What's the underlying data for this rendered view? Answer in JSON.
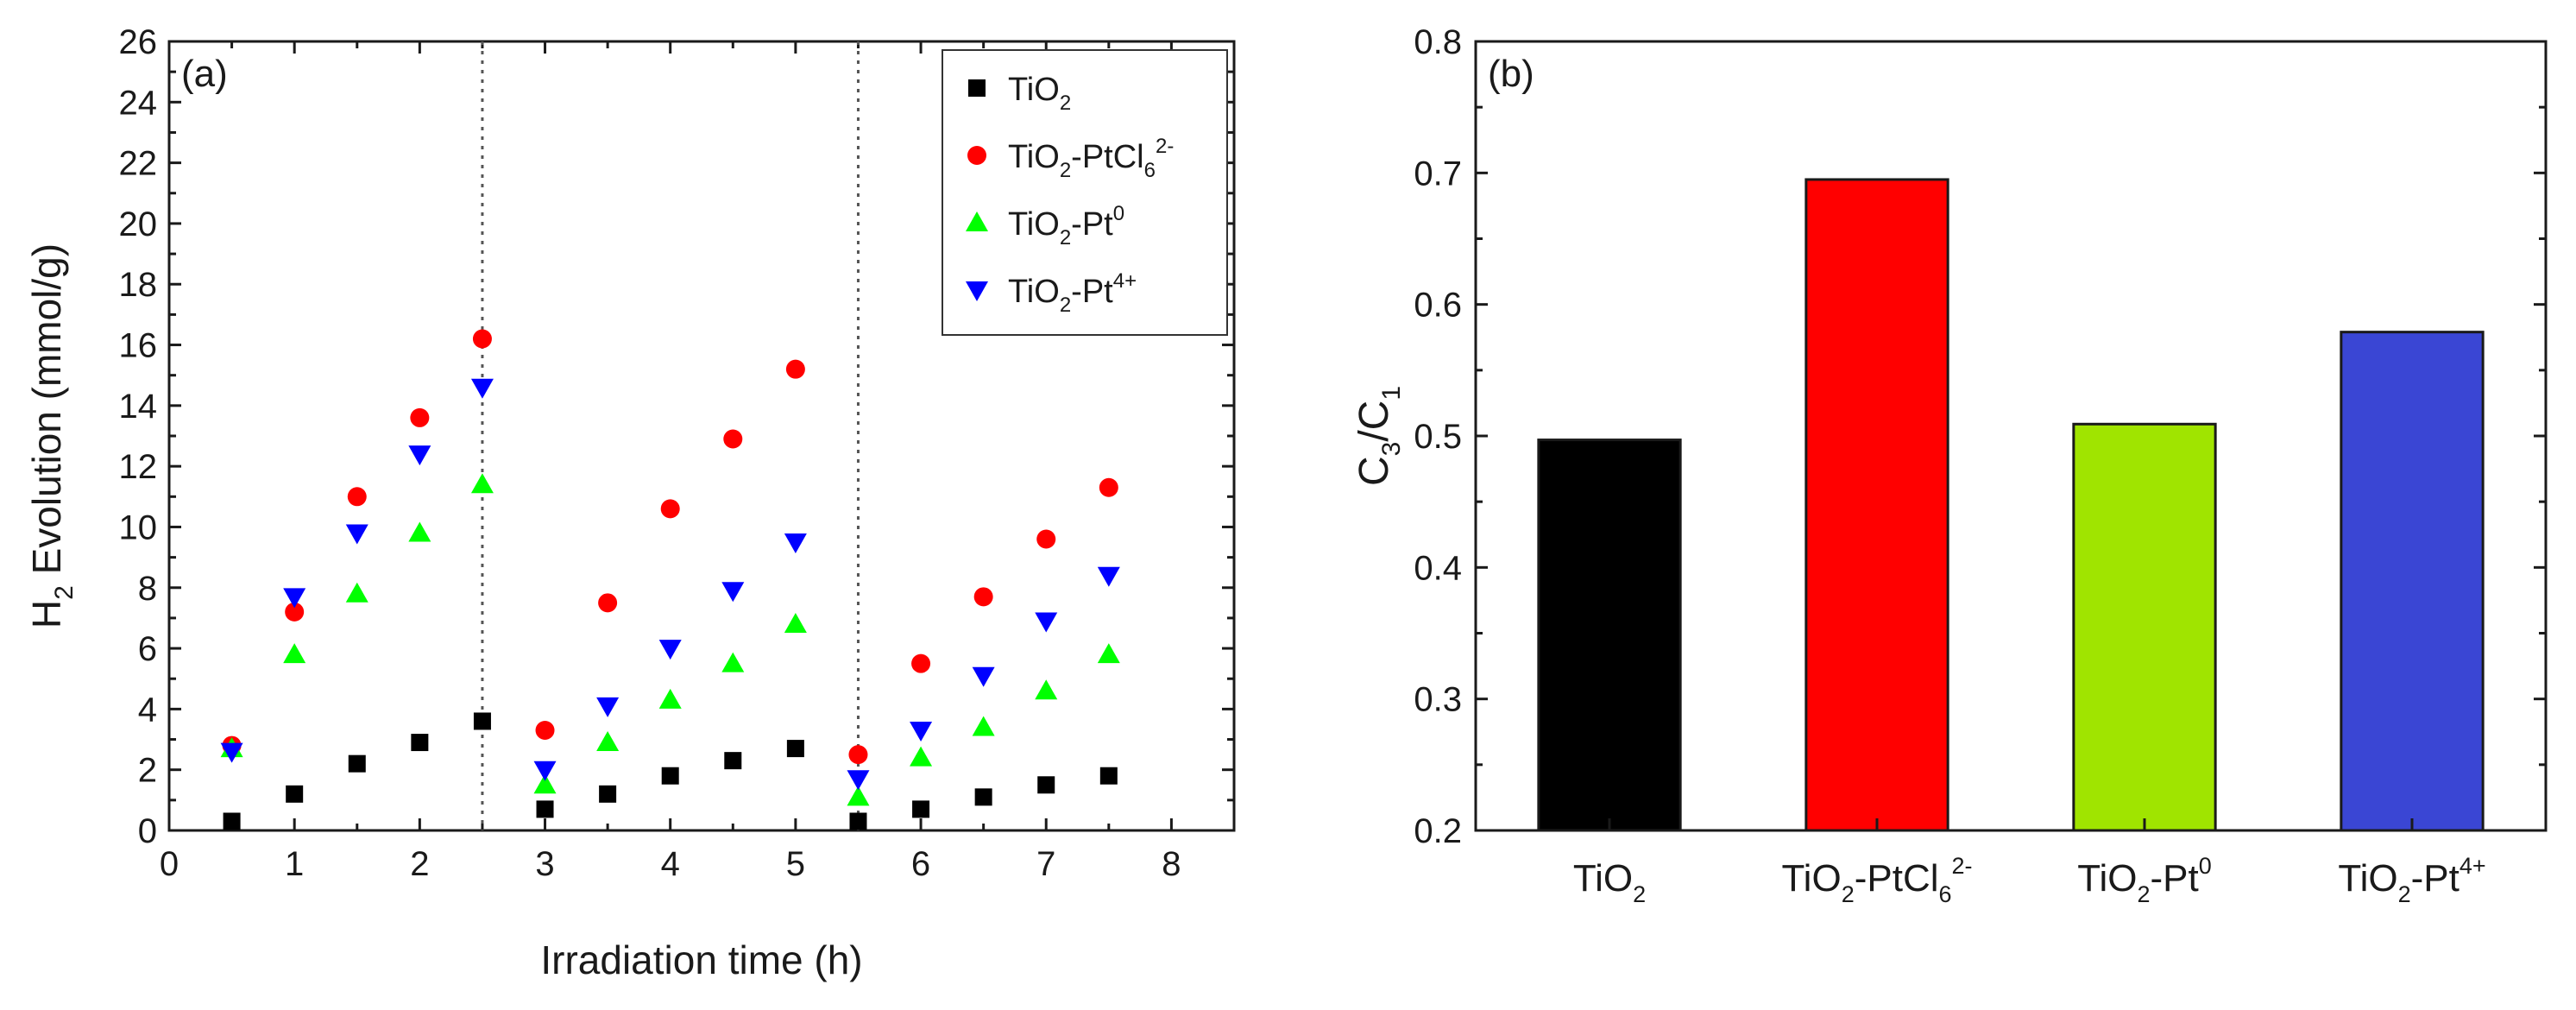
{
  "chart_data": [
    {
      "panel_label": "(a)",
      "type": "scatter",
      "xlabel": "Irradiation time (h)",
      "ylabel": {
        "main": "H",
        "sub": "2",
        "rest": " Evolution (mmol/g)"
      },
      "xlim": [
        0,
        8.5
      ],
      "ylim": [
        0,
        26
      ],
      "xticks": [
        "0",
        "1",
        "2",
        "3",
        "4",
        "5",
        "6",
        "7",
        "8"
      ],
      "yticks": [
        "0",
        "2",
        "4",
        "6",
        "8",
        "10",
        "12",
        "14",
        "16",
        "18",
        "20",
        "22",
        "24",
        "26"
      ],
      "vlines": [
        2.5,
        5.5
      ],
      "series": [
        {
          "name": "TiO2",
          "legend": {
            "base": "TiO",
            "sub": "2",
            "rest": "",
            "sup": ""
          },
          "marker": "square",
          "color": "#000000",
          "x": [
            0.5,
            1,
            1.5,
            2,
            2.5,
            3,
            3.5,
            4,
            4.5,
            5,
            5.5,
            6,
            6.5,
            7,
            7.5
          ],
          "y": [
            0.3,
            1.2,
            2.2,
            2.9,
            3.6,
            0.7,
            1.2,
            1.8,
            2.3,
            2.7,
            0.3,
            0.7,
            1.1,
            1.5,
            1.8
          ]
        },
        {
          "name": "TiO2-PtCl6 2-",
          "legend": {
            "base": "TiO",
            "sub": "2",
            "rest": "-PtCl",
            "sub2": "6",
            "sup": "2-"
          },
          "marker": "circle",
          "color": "#ff0000",
          "x": [
            0.5,
            1,
            1.5,
            2,
            2.5,
            3,
            3.5,
            4,
            4.5,
            5,
            5.5,
            6,
            6.5,
            7,
            7.5
          ],
          "y": [
            2.8,
            7.2,
            11.0,
            13.6,
            16.2,
            3.3,
            7.5,
            10.6,
            12.9,
            15.2,
            2.5,
            5.5,
            7.7,
            9.6,
            11.3
          ]
        },
        {
          "name": "TiO2-Pt0",
          "legend": {
            "base": "TiO",
            "sub": "2",
            "rest": "-Pt",
            "sup": "0"
          },
          "marker": "triangle-up",
          "color": "#00ff00",
          "x": [
            0.5,
            1,
            1.5,
            2,
            2.5,
            3,
            3.5,
            4,
            4.5,
            5,
            5.5,
            6,
            6.5,
            7,
            7.5
          ],
          "y": [
            2.7,
            5.8,
            7.8,
            9.8,
            11.4,
            1.5,
            2.9,
            4.3,
            5.5,
            6.8,
            1.1,
            2.4,
            3.4,
            4.6,
            5.8
          ]
        },
        {
          "name": "TiO2-Pt4+",
          "legend": {
            "base": "TiO",
            "sub": "2",
            "rest": "-Pt",
            "sup": "4+"
          },
          "marker": "triangle-down",
          "color": "#0000ff",
          "x": [
            0.5,
            1,
            1.5,
            2,
            2.5,
            3,
            3.5,
            4,
            4.5,
            5,
            5.5,
            6,
            6.5,
            7,
            7.5
          ],
          "y": [
            2.6,
            7.7,
            9.8,
            12.4,
            14.6,
            2.0,
            4.1,
            6.0,
            7.9,
            9.5,
            1.7,
            3.3,
            5.1,
            6.9,
            8.4
          ]
        }
      ]
    },
    {
      "panel_label": "(b)",
      "type": "bar",
      "ylabel": {
        "a": "C",
        "a_sub": "3",
        "slash": "/C",
        "b_sub": "1"
      },
      "ylim": [
        0.2,
        0.8
      ],
      "yticks": [
        "0.2",
        "0.3",
        "0.4",
        "0.5",
        "0.6",
        "0.7",
        "0.8"
      ],
      "categories": [
        {
          "base": "TiO",
          "sub": "2",
          "rest": "",
          "sup": ""
        },
        {
          "base": "TiO",
          "sub": "2",
          "rest": "-PtCl",
          "sub2": "6",
          "sup": "2-"
        },
        {
          "base": "TiO",
          "sub": "2",
          "rest": "-Pt",
          "sup": "0"
        },
        {
          "base": "TiO",
          "sub": "2",
          "rest": "-Pt",
          "sup": "4+"
        }
      ],
      "values": [
        0.497,
        0.695,
        0.509,
        0.579
      ],
      "colors": [
        "#000000",
        "#ff0000",
        "#a0e400",
        "#3a46d4"
      ]
    }
  ]
}
